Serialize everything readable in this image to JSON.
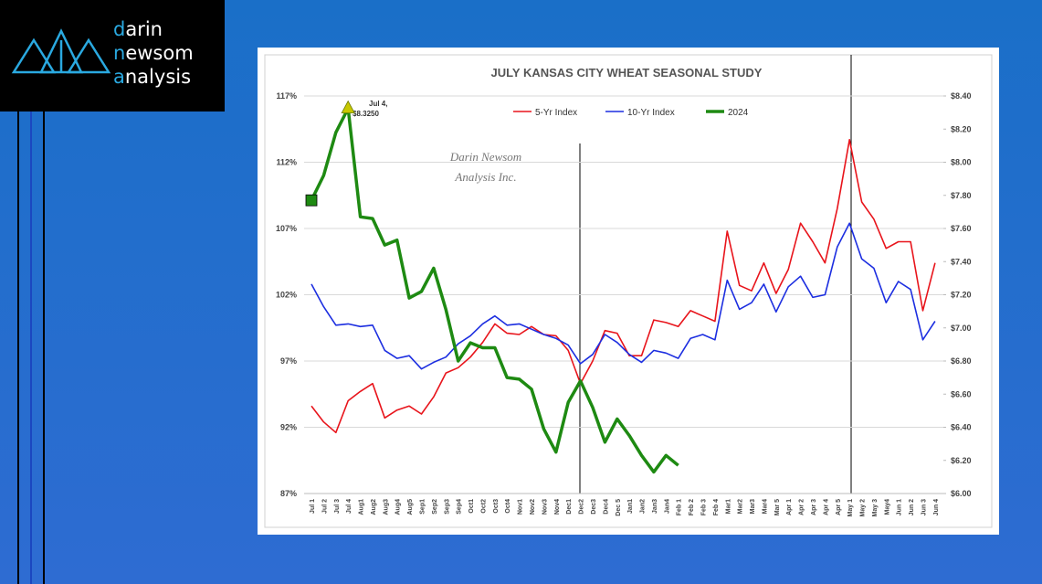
{
  "logo": {
    "lines": [
      "darin",
      "newsom",
      "analysis"
    ]
  },
  "chart_data": {
    "type": "line",
    "title": "JULY KANSAS CITY WHEAT SEASONAL STUDY",
    "watermark": [
      "Darin Newsom",
      "Analysis Inc."
    ],
    "annotation": [
      "Jul 4,",
      "$8.3250"
    ],
    "categories": [
      "Jul 1",
      "Jul 2",
      "Jul 3",
      "Jul 4",
      "Aug1",
      "Aug2",
      "Aug3",
      "Aug4",
      "Aug5",
      "Sep1",
      "Sep2",
      "Sep3",
      "Sep4",
      "Oct1",
      "Oct2",
      "Oct3",
      "Oct4",
      "Nov1",
      "Nov2",
      "Nov3",
      "Nov4",
      "Dec1",
      "Dec2",
      "Dec3",
      "Dec4",
      "Dec 5",
      "Jan1",
      "Jan2",
      "Jan3",
      "Jan4",
      "Feb 1",
      "Feb 2",
      "Feb 3",
      "Feb 4",
      "Mar1",
      "Mar2",
      "Mar3",
      "Mar4",
      "Mar 5",
      "Apr 1",
      "Apr 2",
      "Apr 3",
      "Apr 4",
      "Apr 5",
      "May 1",
      "May 2",
      "May 3",
      "May4",
      "Jun 1",
      "Jun 2",
      "Jun 3",
      "Jun 4"
    ],
    "series": [
      {
        "name": "5-Yr Index",
        "color": "#e8141b",
        "axis": "y",
        "values": [
          93.6,
          92.4,
          91.6,
          94.0,
          94.7,
          95.3,
          92.7,
          93.3,
          93.6,
          93.0,
          94.3,
          96.1,
          96.5,
          97.3,
          98.4,
          99.8,
          99.1,
          99.0,
          99.6,
          99.0,
          98.9,
          97.8,
          95.3,
          97.0,
          99.3,
          99.1,
          97.4,
          97.4,
          100.1,
          99.9,
          99.6,
          100.8,
          100.4,
          100.0,
          106.8,
          102.7,
          102.3,
          104.4,
          102.1,
          103.9,
          107.4,
          106.0,
          104.4,
          108.5,
          113.7,
          109.0,
          107.7,
          105.5,
          106.0,
          106.0,
          100.8,
          104.4
        ]
      },
      {
        "name": "10-Yr Index",
        "color": "#1c2ee0",
        "axis": "y",
        "values": [
          102.8,
          101.1,
          99.7,
          99.8,
          99.6,
          99.7,
          97.8,
          97.2,
          97.4,
          96.4,
          96.9,
          97.3,
          98.3,
          98.9,
          99.8,
          100.4,
          99.7,
          99.8,
          99.4,
          99.0,
          98.7,
          98.2,
          96.8,
          97.5,
          99.0,
          98.4,
          97.5,
          96.9,
          97.8,
          97.6,
          97.2,
          98.7,
          99.0,
          98.6,
          103.1,
          100.9,
          101.4,
          102.8,
          100.7,
          102.6,
          103.4,
          101.8,
          102.0,
          105.6,
          107.4,
          104.7,
          104.0,
          101.4,
          103.0,
          102.4,
          98.6,
          100.0
        ]
      },
      {
        "name": "2024",
        "color": "#1e8a12",
        "axis": "y2",
        "values": [
          7.77,
          7.92,
          8.18,
          8.325,
          7.67,
          7.66,
          7.5,
          7.53,
          7.18,
          7.22,
          7.36,
          7.11,
          6.8,
          6.91,
          6.88,
          6.88,
          6.7,
          6.69,
          6.63,
          6.39,
          6.25,
          6.55,
          6.68,
          6.52,
          6.31,
          6.45,
          6.35,
          6.23,
          6.13,
          6.23,
          6.17,
          null,
          null,
          null,
          null,
          null,
          null,
          null,
          null,
          null,
          null,
          null,
          null,
          null,
          null,
          null,
          null,
          null,
          null,
          null,
          null,
          null
        ]
      }
    ],
    "ylim": [
      87,
      117
    ],
    "yticks": [
      {
        "value": 87,
        "label": "87%"
      },
      {
        "value": 92,
        "label": "92%"
      },
      {
        "value": 97,
        "label": "97%"
      },
      {
        "value": 102,
        "label": "102%"
      },
      {
        "value": 107,
        "label": "107%"
      },
      {
        "value": 112,
        "label": "112%"
      },
      {
        "value": 117,
        "label": "117%"
      }
    ],
    "y2lim": [
      6,
      8.4
    ],
    "y2ticks": [
      {
        "value": 6,
        "label": "$6.00"
      },
      {
        "value": 6.2,
        "label": "$6.20"
      },
      {
        "value": 6.4,
        "label": "$6.40"
      },
      {
        "value": 6.6,
        "label": "$6.60"
      },
      {
        "value": 6.8,
        "label": "$6.80"
      },
      {
        "value": 7,
        "label": "$7.00"
      },
      {
        "value": 7.2,
        "label": "$7.20"
      },
      {
        "value": 7.4,
        "label": "$7.40"
      },
      {
        "value": 7.6,
        "label": "$7.60"
      },
      {
        "value": 7.8,
        "label": "$7.80"
      },
      {
        "value": 8,
        "label": "$8.00"
      },
      {
        "value": 8.2,
        "label": "$8.20"
      },
      {
        "value": 8.4,
        "label": "$8.40"
      }
    ],
    "grid": true
  }
}
